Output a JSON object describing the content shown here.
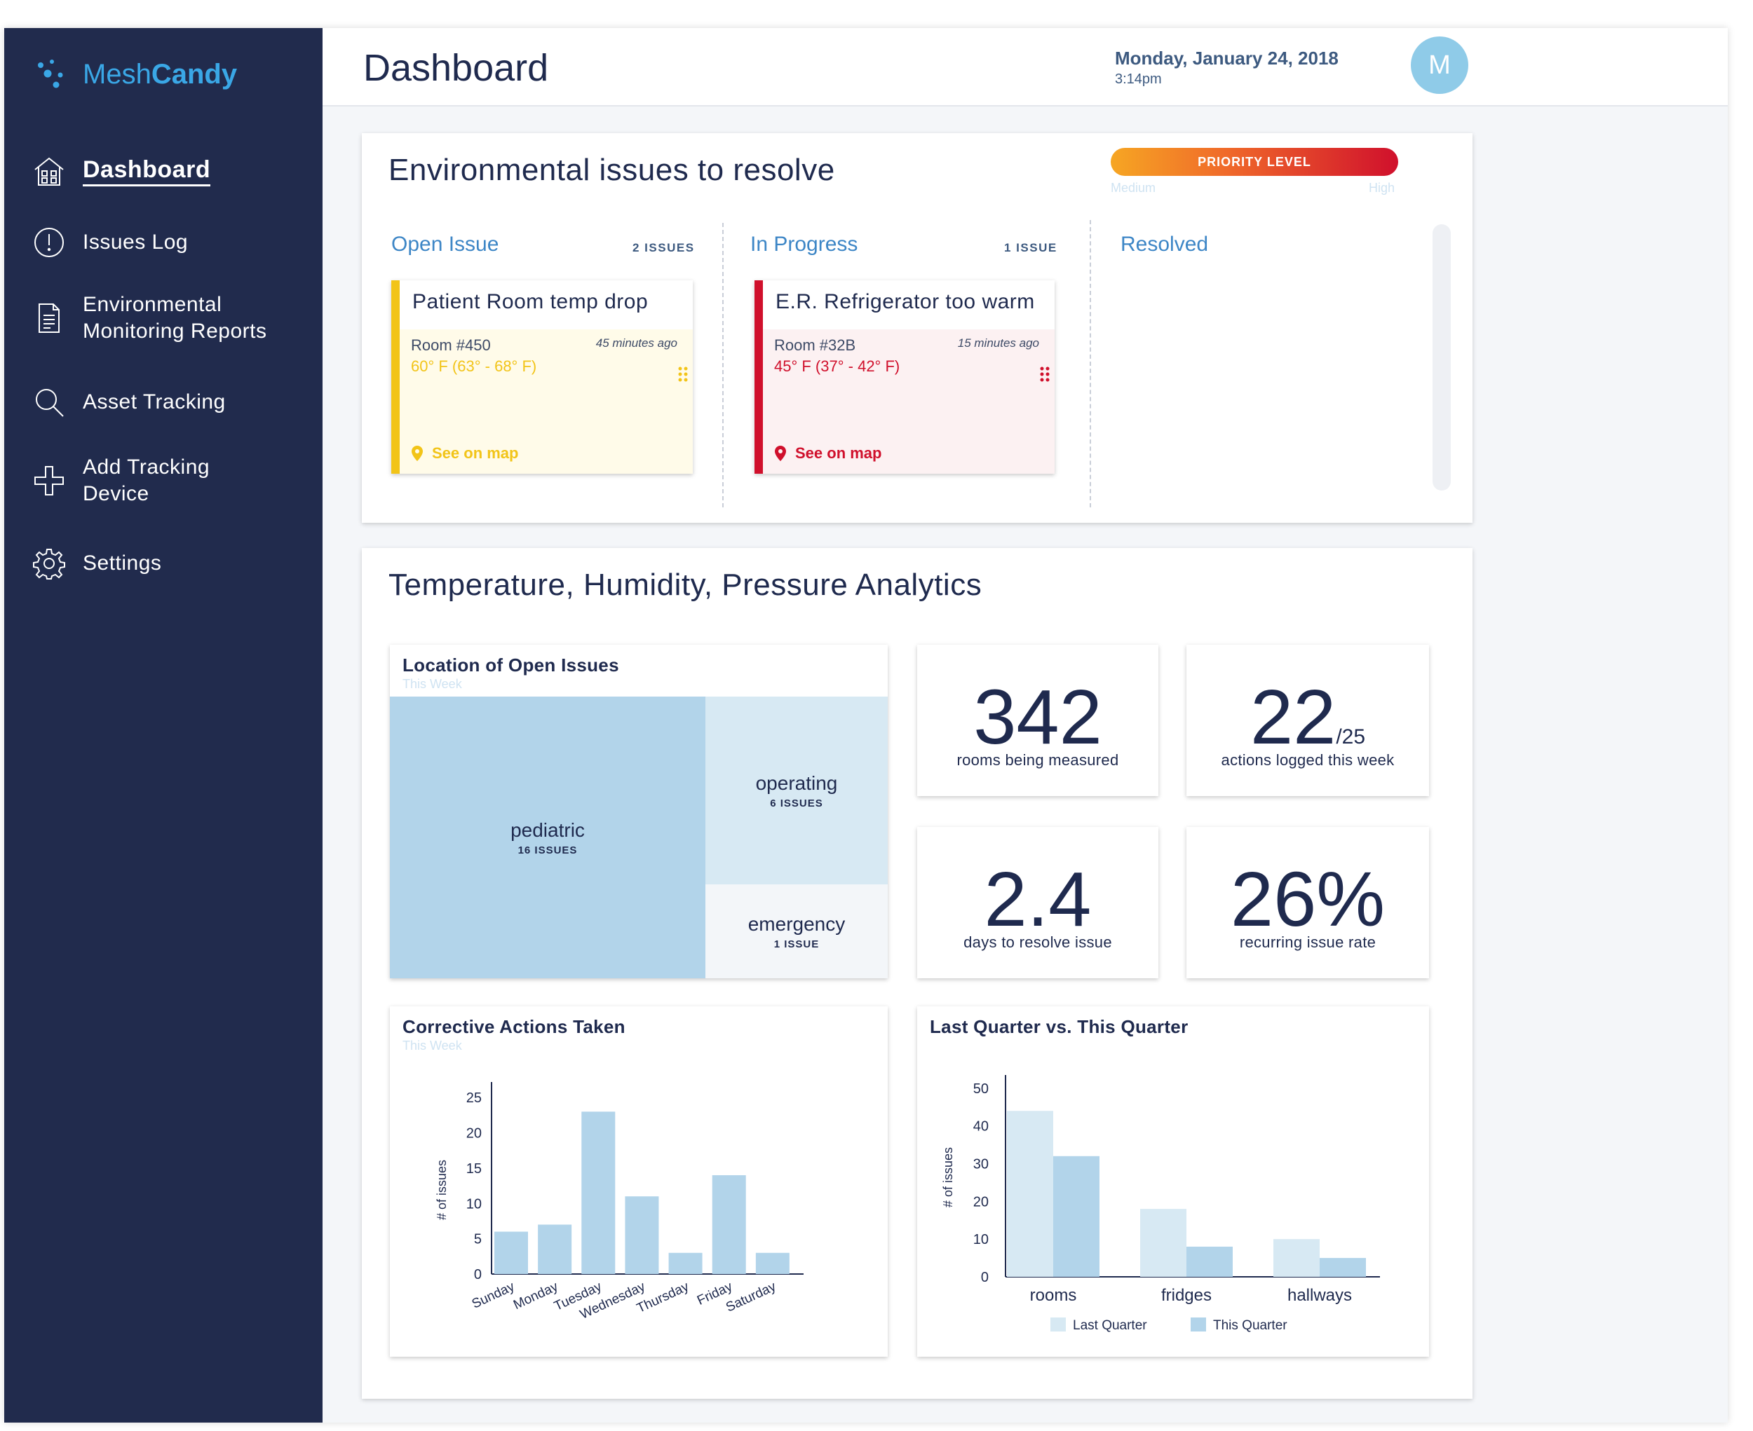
{
  "app": {
    "brand_prefix": "Mesh",
    "brand_suffix": "Candy"
  },
  "sidebar": {
    "items": [
      {
        "label": "Dashboard",
        "icon": "home-icon",
        "active": true
      },
      {
        "label": "Issues Log",
        "icon": "alert-circle-icon"
      },
      {
        "label": "Environmental Monitoring Reports",
        "icon": "document-icon"
      },
      {
        "label": "Asset Tracking",
        "icon": "search-icon"
      },
      {
        "label": "Add Tracking Device",
        "icon": "plus-icon"
      },
      {
        "label": "Settings",
        "icon": "gear-icon"
      }
    ]
  },
  "header": {
    "title": "Dashboard",
    "date": "Monday, January 24, 2018",
    "time": "3:14pm",
    "avatar_initial": "M"
  },
  "issues": {
    "title": "Environmental issues to resolve",
    "priority": {
      "label": "PRIORITY LEVEL",
      "low": "Medium",
      "high": "High"
    },
    "columns": [
      {
        "label": "Open Issue",
        "count": "2 ISSUES"
      },
      {
        "label": "In Progress",
        "count": "1 ISSUE"
      },
      {
        "label": "Resolved",
        "count": ""
      }
    ],
    "cards": [
      {
        "title": "Patient Room temp drop",
        "room": "Room #450",
        "ago": "45 minutes ago",
        "temp": "60° F (63° - 68° F)",
        "map": "See on map",
        "color": "#f2c418",
        "bg": "#fffbe9"
      },
      {
        "title": "E.R. Refrigerator too warm",
        "room": "Room #32B",
        "ago": "15 minutes ago",
        "temp": "45° F (37° - 42° F)",
        "map": "See on map",
        "color": "#d0102c",
        "bg": "#fcf1f2"
      }
    ]
  },
  "analytics": {
    "title": "Temperature, Humidity, Pressure Analytics",
    "treemap": {
      "title": "Location of Open Issues",
      "subtitle": "This Week",
      "areas": [
        {
          "name": "pediatric",
          "count": "16 ISSUES",
          "value": 16
        },
        {
          "name": "operating",
          "count": "6 ISSUES",
          "value": 6
        },
        {
          "name": "emergency",
          "count": "1 ISSUE",
          "value": 1
        }
      ]
    },
    "stats": [
      {
        "value": "342",
        "denominator": "",
        "label": "rooms being measured"
      },
      {
        "value": "22",
        "denominator": "/25",
        "label": "actions logged this week"
      },
      {
        "value": "2.4",
        "denominator": "",
        "label": "days to resolve issue"
      },
      {
        "value": "26%",
        "denominator": "",
        "label": "recurring issue rate"
      }
    ]
  },
  "chart_data": [
    {
      "type": "bar",
      "title": "Corrective Actions Taken",
      "subtitle": "This Week",
      "ylabel": "# of issues",
      "xlabel": "",
      "categories": [
        "Sunday",
        "Monday",
        "Tuesday",
        "Wednesday",
        "Thursday",
        "Friday",
        "Saturday"
      ],
      "values": [
        6,
        7,
        23,
        11,
        3,
        14,
        3
      ],
      "yticks": [
        0,
        5,
        10,
        15,
        20,
        25
      ],
      "ylim": [
        0,
        27
      ],
      "color": "#b2d4ea"
    },
    {
      "type": "bar",
      "title": "Last Quarter vs. This Quarter",
      "ylabel": "# of issues",
      "xlabel": "",
      "categories": [
        "rooms",
        "fridges",
        "hallways"
      ],
      "series": [
        {
          "name": "Last Quarter",
          "values": [
            44,
            18,
            10
          ],
          "color": "#d7e9f3"
        },
        {
          "name": "This Quarter",
          "values": [
            32,
            8,
            5
          ],
          "color": "#b2d4ea"
        }
      ],
      "yticks": [
        0,
        10,
        20,
        30,
        40,
        50
      ],
      "ylim": [
        0,
        55
      ],
      "legend": "bottom"
    }
  ]
}
